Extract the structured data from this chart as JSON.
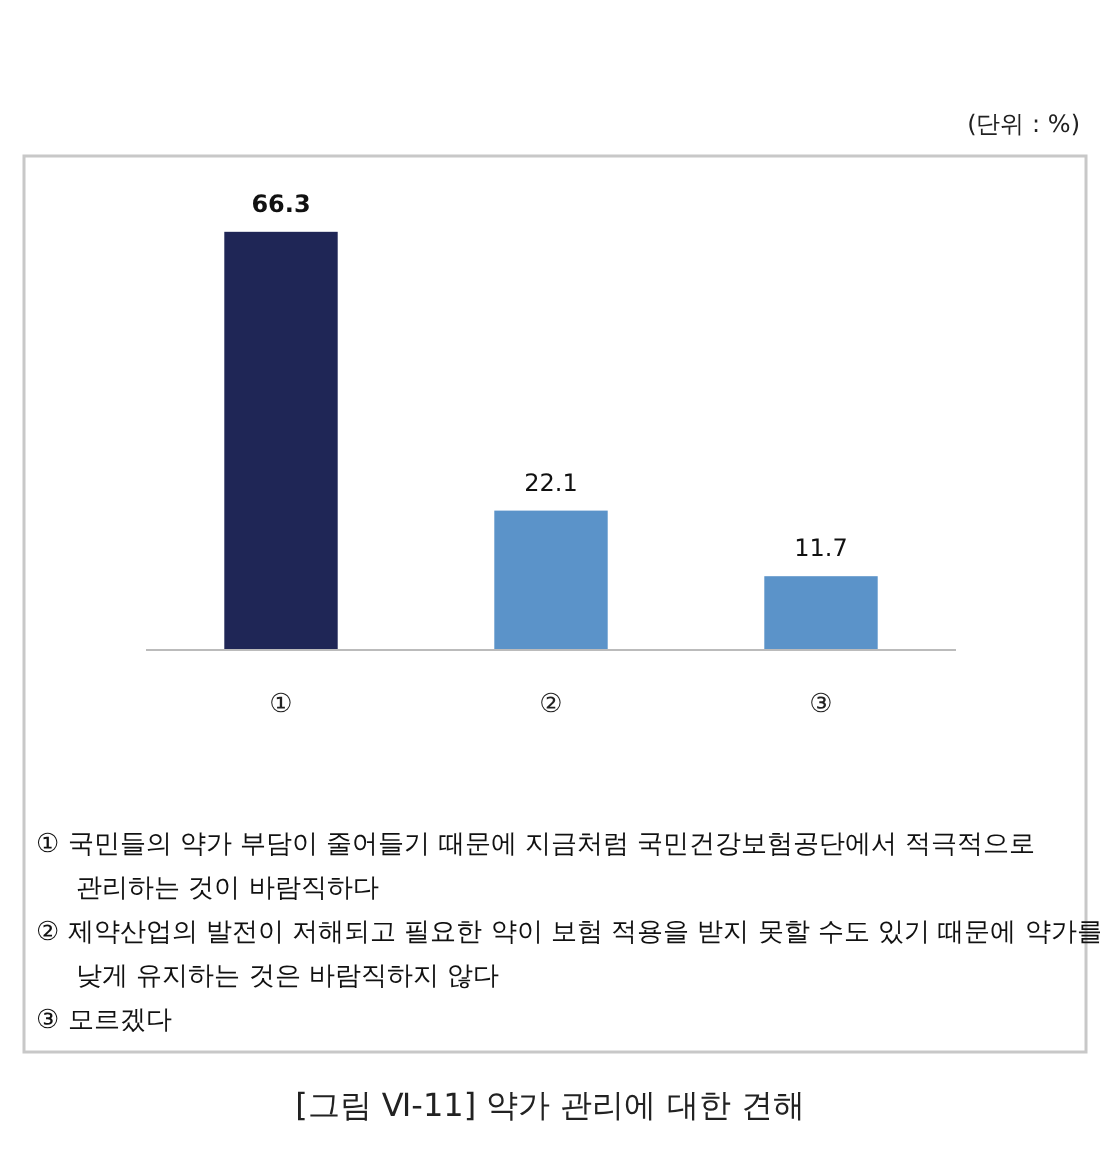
{
  "chart_data": {
    "type": "bar",
    "title": "[그림 Ⅵ-11] 약가 관리에 대한 견해",
    "categories": [
      "①",
      "②",
      "③"
    ],
    "values": [
      66.3,
      22.1,
      11.7
    ],
    "colors": [
      "#1f2656",
      "#5b93c9",
      "#5b93c9"
    ],
    "data_labels": true,
    "annotations": [
      "(단위 : %)",
      "① 국민들의 약가 부담이 줄어들기 때문에 지금처럼 국민건강보험공단에서 적극적으로 관리하는 것이 바람직하다",
      "② 제약산업의 발전이 저해되고 필요한 약이 보험 적용을 받지 못할 수도 있기 때문에 약가를 낮게 유지하는 것은 바람직하지 않다",
      "③ 모르겠다"
    ]
  }
}
